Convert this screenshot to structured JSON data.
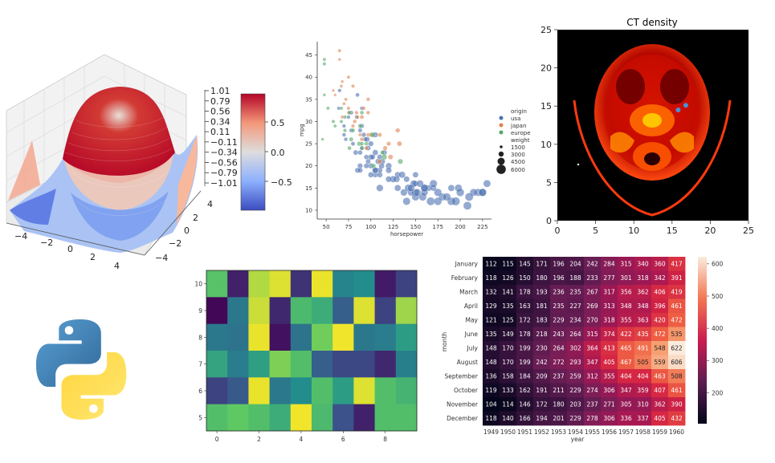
{
  "chart_data": [
    {
      "id": "surface3d",
      "type": "surface",
      "title": "",
      "x_ticks": [
        "−4",
        "−2",
        "0",
        "2",
        "4"
      ],
      "y_ticks": [
        "4",
        "2",
        "0",
        "−2",
        "−4"
      ],
      "z_ticks": [
        "1.01",
        "0.79",
        "0.56",
        "0.34",
        "0.11",
        "−0.11",
        "−0.34",
        "−0.56",
        "−0.79",
        "−1.01"
      ],
      "colorbar_ticks": [
        "0.5",
        "0.0",
        "−0.5"
      ],
      "colormap": "coolwarm",
      "colors": {
        "low": "#3b4cc0",
        "mid": "#dddddd",
        "high": "#b40426"
      }
    },
    {
      "id": "scatter",
      "type": "scatter",
      "xlabel": "horsepower",
      "ylabel": "mpg",
      "xlim": [
        40,
        235
      ],
      "ylim": [
        8,
        48
      ],
      "x_ticks": [
        50,
        75,
        100,
        125,
        150,
        175,
        200,
        225
      ],
      "y_ticks": [
        10,
        15,
        20,
        25,
        30,
        35,
        40,
        45
      ],
      "legend_placement": "right",
      "legend": {
        "hue_title": "origin",
        "hue": [
          {
            "name": "usa",
            "color": "#4c72b0"
          },
          {
            "name": "japan",
            "color": "#dd8452"
          },
          {
            "name": "europe",
            "color": "#55a868"
          }
        ],
        "size_title": "weight",
        "sizes": [
          "1500",
          "3000",
          "4500",
          "6000"
        ]
      },
      "series": [
        {
          "name": "usa",
          "color": "#4c72b0",
          "points": [
            [
              130,
              18,
              3500
            ],
            [
              165,
              15,
              3700
            ],
            [
              150,
              18,
              3400
            ],
            [
              150,
              16,
              3400
            ],
            [
              140,
              17,
              3450
            ],
            [
              198,
              15,
              4300
            ],
            [
              220,
              14,
              4350
            ],
            [
              215,
              14,
              4300
            ],
            [
              225,
              14,
              4420
            ],
            [
              190,
              15,
              3850
            ],
            [
              170,
              15,
              3600
            ],
            [
              160,
              15,
              3760
            ],
            [
              150,
              14,
              4200
            ],
            [
              225,
              14,
              4460
            ],
            [
              95,
              22,
              2830
            ],
            [
              105,
              18,
              3200
            ],
            [
              97,
              21,
              2900
            ],
            [
              85,
              19,
              3000
            ],
            [
              88,
              20,
              3100
            ],
            [
              100,
              20,
              3250
            ],
            [
              110,
              18,
              3300
            ],
            [
              90,
              24,
              2650
            ],
            [
              80,
              25,
              2500
            ],
            [
              72,
              26,
              2350
            ],
            [
              110,
              19,
              3250
            ],
            [
              113,
              21,
              3300
            ],
            [
              100,
              22,
              3300
            ],
            [
              105,
              19,
              3600
            ],
            [
              150,
              13,
              4400
            ],
            [
              145,
              14,
              4000
            ],
            [
              137,
              14,
              4050
            ],
            [
              158,
              13,
              4500
            ],
            [
              167,
              12,
              4700
            ],
            [
              180,
              13,
              4400
            ],
            [
              175,
              12,
              4600
            ],
            [
              208,
              11,
              4750
            ],
            [
              230,
              16,
              4300
            ],
            [
              152,
              14,
              4200
            ],
            [
              100,
              18,
              3300
            ],
            [
              88,
              23,
              2800
            ],
            [
              105,
              19,
              3500
            ],
            [
              78,
              32,
              2450
            ],
            [
              96,
              26,
              3000
            ],
            [
              70,
              29,
              2200
            ],
            [
              88,
              28,
              2600
            ],
            [
              110,
              22,
              3150
            ],
            [
              97,
              24,
              2900
            ],
            [
              64,
              33,
              2100
            ],
            [
              84,
              31,
              2400
            ],
            [
              90,
              33,
              2350
            ],
            [
              115,
              23,
              3200
            ],
            [
              120,
              20,
              3600
            ],
            [
              190,
              12,
              4600
            ],
            [
              160,
              14,
              4150
            ],
            [
              140,
              12,
              4400
            ],
            [
              129,
              17,
              3700
            ],
            [
              135,
              18,
              3800
            ],
            [
              125,
              17,
              3900
            ],
            [
              148,
              16,
              4000
            ],
            [
              110,
              15,
              4050
            ],
            [
              155,
              16,
              4100
            ],
            [
              85,
              36,
              2400
            ],
            [
              65,
              37,
              2200
            ],
            [
              92,
              27,
              2800
            ],
            [
              75,
              31,
              2250
            ],
            [
              100,
              25,
              3100
            ],
            [
              105,
              23,
              3350
            ],
            [
              112,
              20,
              3400
            ],
            [
              70,
              27,
              2300
            ],
            [
              120,
              17,
              3550
            ],
            [
              95,
              20,
              3000
            ],
            [
              130,
              15,
              3750
            ],
            [
              185,
              13,
              4500
            ],
            [
              200,
              14,
              4600
            ],
            [
              210,
              13,
              4700
            ],
            [
              142,
              15,
              4300
            ],
            [
              160,
              15,
              4500
            ],
            [
              170,
              16,
              4400
            ],
            [
              102,
              22,
              3050
            ],
            [
              94,
              26,
              2800
            ],
            [
              105,
              27,
              3200
            ],
            [
              90,
              29,
              2700
            ],
            [
              83,
              23,
              2900
            ],
            [
              78,
              28,
              2500
            ],
            [
              88,
              19,
              3000
            ],
            [
              108,
              21,
              3200
            ],
            [
              120,
              19,
              3500
            ],
            [
              145,
              15,
              4100
            ],
            [
              175,
              14,
              4500
            ],
            [
              195,
              12,
              4800
            ]
          ]
        },
        {
          "name": "japan",
          "color": "#dd8452",
          "points": [
            [
              88,
              27,
              2130
            ],
            [
              95,
              24,
              2370
            ],
            [
              97,
              27,
              2300
            ],
            [
              65,
              46,
              2000
            ],
            [
              67,
              38,
              1960
            ],
            [
              60,
              36,
              1800
            ],
            [
              68,
              31,
              2000
            ],
            [
              75,
              33,
              2100
            ],
            [
              80,
              29,
              2200
            ],
            [
              97,
              35,
              2260
            ],
            [
              120,
              25,
              2600
            ],
            [
              110,
              21,
              2800
            ],
            [
              75,
              32,
              2050
            ],
            [
              70,
              34,
              1950
            ],
            [
              65,
              44,
              1850
            ],
            [
              84,
              32,
              2250
            ],
            [
              92,
              33,
              2200
            ],
            [
              132,
              25,
              2900
            ],
            [
              130,
              28,
              2800
            ],
            [
              110,
              27,
              2500
            ],
            [
              75,
              40,
              2000
            ],
            [
              82,
              30,
              2300
            ],
            [
              90,
              31,
              2400
            ],
            [
              68,
              39,
              1900
            ],
            [
              58,
              37,
              1800
            ],
            [
              90,
              26,
              2400
            ],
            [
              116,
              24,
              2700
            ],
            [
              122,
              22,
              2900
            ],
            [
              100,
              27,
              2600
            ],
            [
              85,
              31,
              2200
            ],
            [
              72,
              35,
              2050
            ],
            [
              97,
              32,
              2300
            ],
            [
              80,
              38,
              2100
            ]
          ]
        },
        {
          "name": "europe",
          "color": "#55a868",
          "points": [
            [
              46,
              26,
              1840
            ],
            [
              87,
              25,
              2670
            ],
            [
              90,
              24,
              2430
            ],
            [
              95,
              25,
              2370
            ],
            [
              113,
              23,
              2580
            ],
            [
              90,
              25,
              2430
            ],
            [
              48,
              43,
              2100
            ],
            [
              67,
              33,
              2150
            ],
            [
              76,
              32,
              2300
            ],
            [
              71,
              31,
              2200
            ],
            [
              88,
              29,
              2550
            ],
            [
              78,
              26,
              2600
            ],
            [
              48,
              44,
              2000
            ],
            [
              52,
              33,
              2000
            ],
            [
              67,
              30,
              2100
            ],
            [
              133,
              21,
              3000
            ],
            [
              115,
              22,
              3200
            ],
            [
              71,
              28,
              2250
            ],
            [
              60,
              29,
              2050
            ],
            [
              103,
              20,
              2800
            ],
            [
              76,
              24,
              2400
            ],
            [
              90,
              32,
              2400
            ],
            [
              80,
              28,
              2500
            ],
            [
              48,
              36,
              1900
            ],
            [
              102,
              27,
              3000
            ],
            [
              58,
              30,
              2100
            ]
          ]
        }
      ]
    },
    {
      "id": "ct",
      "type": "image",
      "title": "CT density",
      "x_ticks": [
        "0",
        "5",
        "10",
        "15",
        "20",
        "25"
      ],
      "y_ticks": [
        "25",
        "20",
        "15",
        "10",
        "5",
        "0"
      ],
      "xlim": [
        0,
        25
      ],
      "ylim": [
        0,
        25
      ],
      "markers": [
        [
          15.8,
          14.5
        ],
        [
          16.8,
          15.1
        ]
      ],
      "marker_color": "#4a90d9"
    },
    {
      "id": "random_heatmap",
      "type": "heatmap",
      "colormap": "viridis",
      "x_ticks": [
        "0",
        "2",
        "4",
        "6",
        "8"
      ],
      "y_ticks": [
        "10",
        "9",
        "8",
        "7",
        "6",
        "5"
      ],
      "xlim": [
        -0.5,
        9.5
      ],
      "ylim": [
        4.5,
        10.5
      ],
      "values": [
        [
          0.72,
          0.1,
          0.88,
          0.95,
          0.15,
          0.97,
          0.45,
          0.48,
          0.08,
          0.2
        ],
        [
          0.02,
          0.4,
          0.92,
          0.12,
          0.68,
          0.62,
          0.3,
          0.95,
          0.2,
          0.85
        ],
        [
          0.4,
          0.38,
          0.97,
          0.05,
          0.38,
          0.78,
          0.98,
          0.4,
          0.42,
          0.55
        ],
        [
          0.58,
          0.42,
          0.56,
          0.8,
          0.7,
          0.3,
          0.22,
          0.22,
          0.12,
          0.43
        ],
        [
          0.2,
          0.28,
          0.97,
          0.4,
          0.48,
          0.7,
          0.55,
          0.95,
          0.7,
          0.65
        ],
        [
          0.7,
          0.75,
          0.7,
          0.62,
          0.98,
          0.68,
          0.25,
          0.1,
          0.7,
          0.7
        ]
      ]
    },
    {
      "id": "flights_heatmap",
      "type": "heatmap",
      "colormap": "rocket",
      "xlabel": "year",
      "ylabel": "month",
      "categories": [
        "1949",
        "1950",
        "1951",
        "1952",
        "1953",
        "1954",
        "1955",
        "1956",
        "1957",
        "1958",
        "1959",
        "1960"
      ],
      "rows": [
        "January",
        "February",
        "March",
        "April",
        "May",
        "June",
        "July",
        "August",
        "September",
        "October",
        "November",
        "December"
      ],
      "values": [
        [
          112,
          115,
          145,
          171,
          196,
          204,
          242,
          284,
          315,
          340,
          360,
          417
        ],
        [
          118,
          126,
          150,
          180,
          196,
          188,
          233,
          277,
          301,
          318,
          342,
          391
        ],
        [
          132,
          141,
          178,
          193,
          236,
          235,
          267,
          317,
          356,
          362,
          406,
          419
        ],
        [
          129,
          135,
          163,
          181,
          235,
          227,
          269,
          313,
          348,
          348,
          396,
          461
        ],
        [
          121,
          125,
          172,
          183,
          229,
          234,
          270,
          318,
          355,
          363,
          420,
          472
        ],
        [
          135,
          149,
          178,
          218,
          243,
          264,
          315,
          374,
          422,
          435,
          472,
          535
        ],
        [
          148,
          170,
          199,
          230,
          264,
          302,
          364,
          413,
          465,
          491,
          548,
          622
        ],
        [
          148,
          170,
          199,
          242,
          272,
          293,
          347,
          405,
          467,
          505,
          559,
          606
        ],
        [
          136,
          158,
          184,
          209,
          237,
          259,
          312,
          355,
          404,
          404,
          463,
          508
        ],
        [
          119,
          133,
          162,
          191,
          211,
          229,
          274,
          306,
          347,
          359,
          407,
          461
        ],
        [
          104,
          114,
          146,
          172,
          180,
          203,
          237,
          271,
          305,
          310,
          362,
          390
        ],
        [
          118,
          140,
          166,
          194,
          201,
          229,
          278,
          306,
          336,
          337,
          405,
          432
        ]
      ],
      "colorbar_ticks": [
        200,
        300,
        400,
        500,
        600
      ],
      "vmin": 104,
      "vmax": 622
    }
  ]
}
